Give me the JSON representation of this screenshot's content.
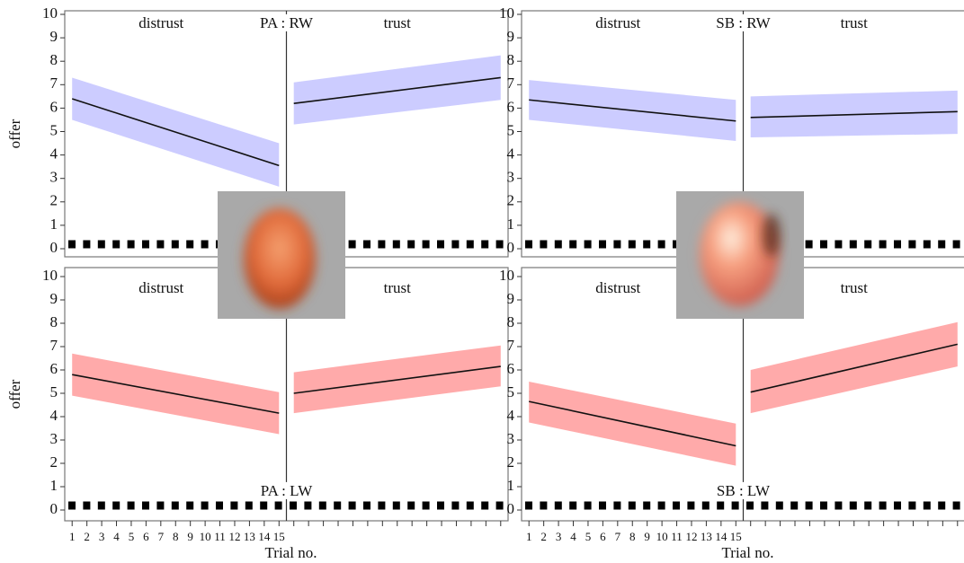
{
  "chart_data": [
    {
      "type": "line",
      "title": "PA : RW",
      "title_color": "#1a1aff",
      "band_color": "#ccccff",
      "ylabel": "offer",
      "ylim": [
        0,
        10
      ],
      "yticks": [
        0,
        1,
        2,
        3,
        4,
        5,
        6,
        7,
        8,
        9,
        10
      ],
      "series": [
        {
          "name": "distrust",
          "color": "#111111",
          "x": [
            1,
            15
          ],
          "values": [
            6.4,
            3.55
          ],
          "lower": [
            5.5,
            2.65
          ],
          "upper": [
            7.3,
            4.5
          ]
        },
        {
          "name": "trust",
          "color": "#111111",
          "x": [
            1,
            15
          ],
          "values": [
            6.2,
            7.3
          ],
          "lower": [
            5.3,
            6.35
          ],
          "upper": [
            7.1,
            8.25
          ]
        }
      ]
    },
    {
      "type": "line",
      "title": "SB : RW",
      "title_color": "#1a1aff",
      "band_color": "#ccccff",
      "ylim": [
        0,
        10
      ],
      "yticks": [
        0,
        1,
        2,
        3,
        4,
        5,
        6,
        7,
        8,
        9,
        10
      ],
      "series": [
        {
          "name": "distrust",
          "color": "#111111",
          "x": [
            1,
            15
          ],
          "values": [
            6.35,
            5.45
          ],
          "lower": [
            5.5,
            4.6
          ],
          "upper": [
            7.2,
            6.35
          ]
        },
        {
          "name": "trust",
          "color": "#111111",
          "x": [
            1,
            15
          ],
          "values": [
            5.6,
            5.85
          ],
          "lower": [
            4.75,
            4.9
          ],
          "upper": [
            6.5,
            6.75
          ]
        }
      ]
    },
    {
      "type": "line",
      "title": "PA : LW",
      "title_color": "#ee1111",
      "band_color": "#ffaaaa",
      "ylabel": "offer",
      "xlabel": "Trial no.",
      "categories": [
        "1",
        "2",
        "3",
        "4",
        "5",
        "6",
        "7",
        "8",
        "9",
        "10",
        "11",
        "12",
        "13",
        "14",
        "15",
        null,
        null,
        null,
        null,
        null,
        null,
        null,
        null,
        null,
        null,
        null,
        null,
        null,
        null,
        null
      ],
      "ylim": [
        0,
        10
      ],
      "yticks": [
        0,
        1,
        2,
        3,
        4,
        5,
        6,
        7,
        8,
        9,
        10
      ],
      "series": [
        {
          "name": "distrust",
          "color": "#111111",
          "x": [
            1,
            15
          ],
          "values": [
            5.8,
            4.15
          ],
          "lower": [
            4.9,
            3.25
          ],
          "upper": [
            6.7,
            5.05
          ]
        },
        {
          "name": "trust",
          "color": "#111111",
          "x": [
            1,
            15
          ],
          "values": [
            5.0,
            6.15
          ],
          "lower": [
            4.15,
            5.3
          ],
          "upper": [
            5.9,
            7.05
          ]
        }
      ]
    },
    {
      "type": "line",
      "title": "SB : LW",
      "title_color": "#ee1111",
      "band_color": "#ffaaaa",
      "xlabel": "Trial no.",
      "categories": [
        "1",
        "2",
        "3",
        "4",
        "5",
        "6",
        "7",
        "8",
        "9",
        "10",
        "11",
        "12",
        "13",
        "14",
        "15",
        null,
        null,
        null,
        null,
        null,
        null,
        null,
        null,
        null,
        null,
        null,
        null,
        null,
        null,
        null
      ],
      "ylim": [
        0,
        10
      ],
      "yticks": [
        0,
        1,
        2,
        3,
        4,
        5,
        6,
        7,
        8,
        9,
        10
      ],
      "series": [
        {
          "name": "distrust",
          "color": "#111111",
          "x": [
            1,
            15
          ],
          "values": [
            4.65,
            2.75
          ],
          "lower": [
            3.75,
            1.9
          ],
          "upper": [
            5.5,
            3.7
          ]
        },
        {
          "name": "trust",
          "color": "#111111",
          "x": [
            1,
            15
          ],
          "values": [
            5.05,
            7.1
          ],
          "lower": [
            4.15,
            6.15
          ],
          "upper": [
            6.0,
            8.05
          ]
        }
      ]
    }
  ]
}
